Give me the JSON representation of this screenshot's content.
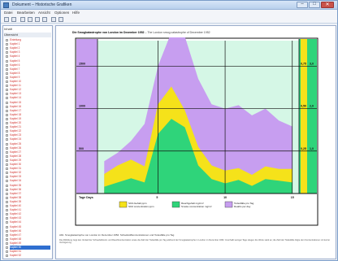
{
  "window": {
    "title": "Dokument – Historische Grafiken",
    "min_label": "–",
    "max_label": "□",
    "close_label": "✕",
    "app_icon": "document-icon"
  },
  "menu": {
    "items": [
      "Datei",
      "Bearbeiten",
      "Ansicht",
      "Optionen",
      "Hilfe"
    ]
  },
  "toolbar": {
    "icons": [
      "back-icon",
      "forward-icon",
      "print-icon",
      "save-icon",
      "copy-icon",
      "search-icon",
      "zoom-icon",
      "settings-icon"
    ]
  },
  "sidebar": {
    "header": "Inhalt",
    "subheader": "Übersicht",
    "items": [
      "Einleitung",
      "Kapitel 1",
      "Kapitel 2",
      "Kapitel 3",
      "Kapitel 4",
      "Kapitel 5",
      "Kapitel 6",
      "Kapitel 7",
      "Kapitel 8",
      "Kapitel 9",
      "Kapitel 10",
      "Kapitel 11",
      "Kapitel 12",
      "Kapitel 13",
      "Kapitel 14",
      "Kapitel 15",
      "Kapitel 16",
      "Kapitel 17",
      "Kapitel 18",
      "Kapitel 19",
      "Kapitel 20",
      "Kapitel 21",
      "Kapitel 22",
      "Kapitel 23",
      "Kapitel 24",
      "Kapitel 25",
      "Kapitel 26",
      "Kapitel 27",
      "Kapitel 28",
      "Kapitel 29",
      "Kapitel 30",
      "Kapitel 31",
      "Kapitel 32",
      "Kapitel 33",
      "Kapitel 34",
      "Kapitel 35",
      "Kapitel 36",
      "Kapitel 37",
      "Kapitel 38",
      "Kapitel 39",
      "Kapitel 40",
      "Kapitel 41",
      "Kapitel 42",
      "Kapitel 43",
      "Kapitel 44",
      "Kapitel 45",
      "Kapitel 46",
      "Kapitel 47",
      "Kapitel 48",
      "Kapitel 49",
      "Kapitel 50",
      "Kapitel 51",
      "Kapitel 52"
    ],
    "selected_index": 50
  },
  "content": {
    "title_bold": "Die Smogkatastrophe von London im Dezember 1952",
    "title_rest": "– The London smog catastrophe of December 1952",
    "caption": "Abb. Smogkatastrophe von London im Dezember 1952: Schadstoffkonzentrationen und Todesfälle pro Tag",
    "body": "Die Abbildung zeigt den Verlauf der Schwefeldioxid- und Rauchkonzentration sowie die Zahl der Todesfälle pro Tag während der Smogkatastrophe in London im Dezember 1952. Innerhalb weniger Tage stiegen die Werte stark an; die Zahl der Todesfälle folgte den Konzentrationen mit kurzer Verzögerung."
  },
  "chart_data": {
    "type": "area",
    "title": "Die Smogkatastrophe von London im Dezember 1952 – The London smog catastrophe of December 1952",
    "xlabel": "Tage Days",
    "x": [
      1,
      2,
      3,
      4,
      5,
      6,
      7,
      8,
      9,
      10,
      11,
      12,
      13,
      14,
      15
    ],
    "x_ticks": [
      "5",
      "10",
      "15"
    ],
    "left_ticks": [
      "500",
      "1000",
      "1500"
    ],
    "right_ticks": [
      [
        "0,75",
        "3,0"
      ],
      [
        "0,50",
        "2,0"
      ],
      [
        "0,25",
        "1,0"
      ]
    ],
    "ylim": [
      0,
      1800
    ],
    "series": [
      {
        "name": "Todesfälle pro Tag / Deaths per day",
        "color": "#c79ef0",
        "values": [
          380,
          480,
          620,
          820,
          1500,
          1900,
          1850,
          1350,
          1050,
          1000,
          1040,
          920,
          1000,
          860,
          790
        ]
      },
      {
        "name": "SO2-Gehalt ppm / SO2 concentration ppm",
        "color": "#f5e21a",
        "values": [
          230,
          330,
          400,
          320,
          1050,
          1260,
          980,
          550,
          330,
          270,
          300,
          220,
          320,
          290,
          290
        ]
      },
      {
        "name": "Rauchgehalt mg/cm³ / Smoke concentration mg/m³",
        "color": "#2fd47a",
        "values": [
          80,
          130,
          180,
          130,
          700,
          880,
          780,
          330,
          170,
          120,
          160,
          90,
          170,
          150,
          130
        ]
      }
    ],
    "background": "#d5f7e6",
    "grid": true,
    "legend_position": "bottom"
  }
}
